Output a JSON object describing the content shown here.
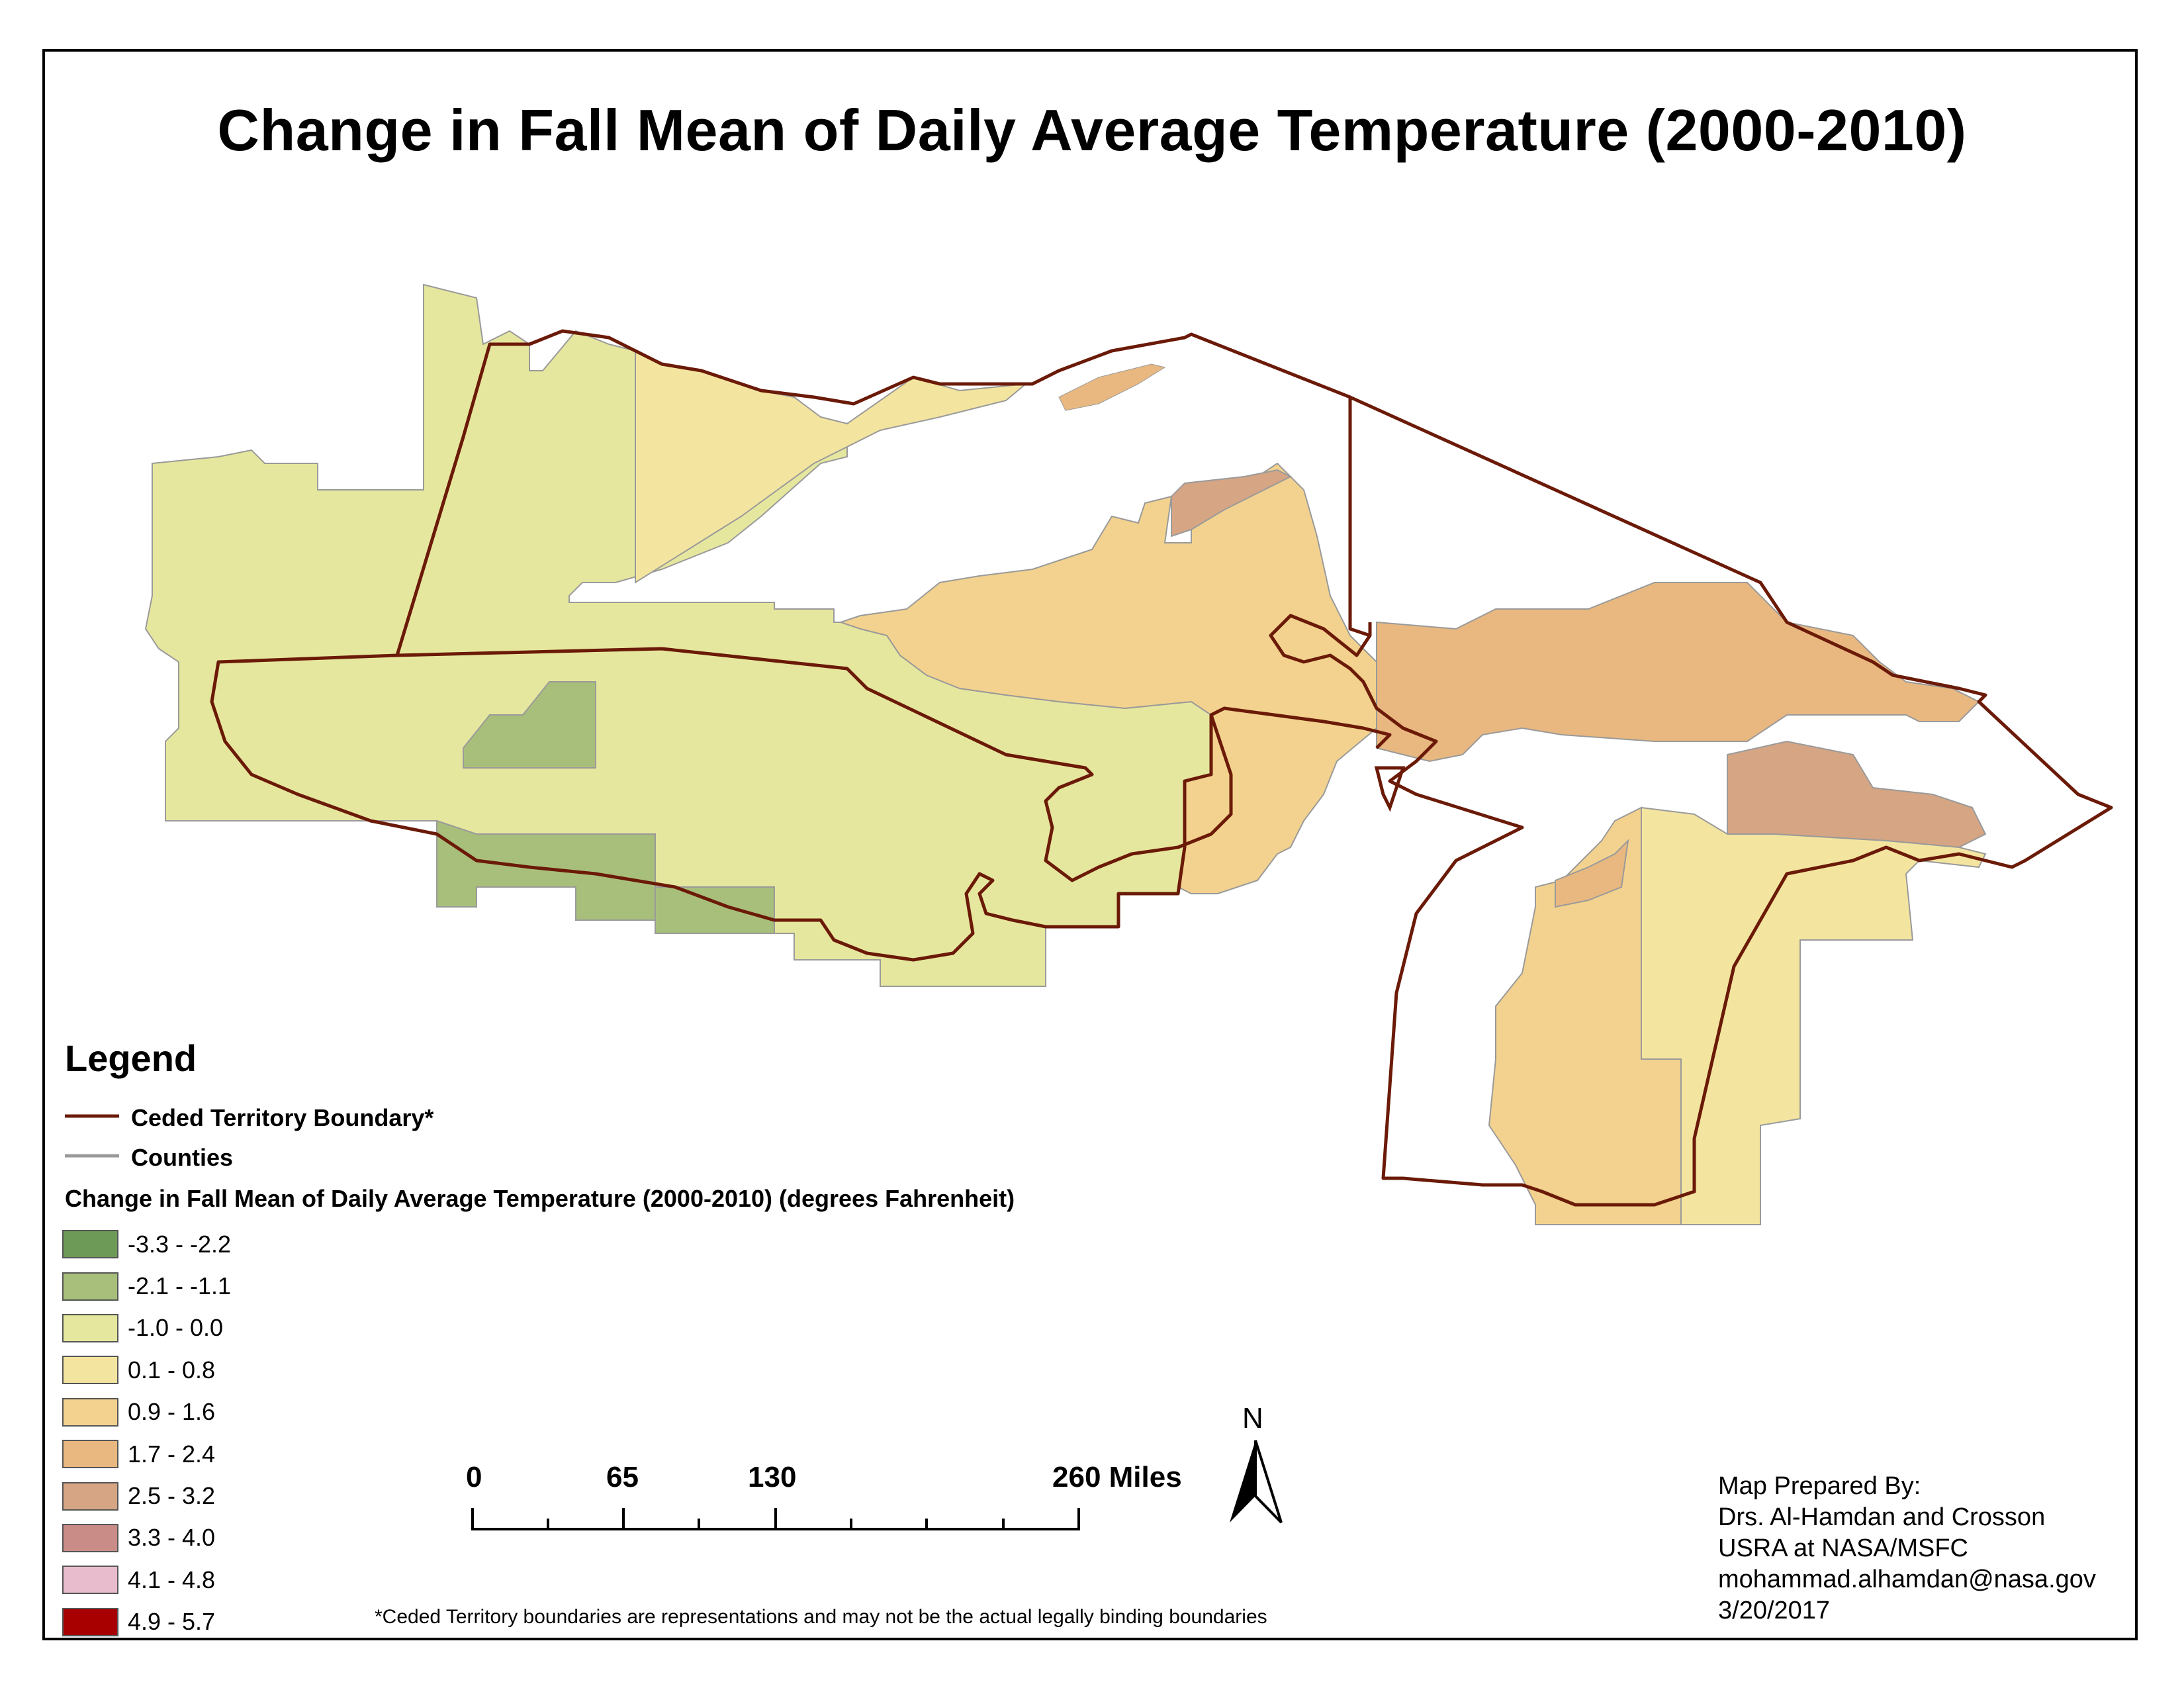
{
  "title": "Change in Fall Mean of Daily Average Temperature (2000-2010)",
  "legend": {
    "title": "Legend",
    "boundary_label": "Ceded Territory Boundary*",
    "counties_label": "Counties",
    "subtitle": "Change in Fall Mean of Daily Average Temperature (2000-2010) (degrees Fahrenheit)",
    "classes": [
      {
        "label": "-3.3 - -2.2",
        "color": "#6e9a58"
      },
      {
        "label": "-2.1 - -1.1",
        "color": "#a8bf7b"
      },
      {
        "label": "-1.0 - 0.0",
        "color": "#e6e79e"
      },
      {
        "label": "0.1 - 0.8",
        "color": "#f3e5a0"
      },
      {
        "label": "0.9 - 1.6",
        "color": "#f2d28e"
      },
      {
        "label": "1.7 - 2.4",
        "color": "#e8b880"
      },
      {
        "label": "2.5 - 3.2",
        "color": "#d5a584"
      },
      {
        "label": "3.3 - 4.0",
        "color": "#c98c86"
      },
      {
        "label": "4.1 - 4.8",
        "color": "#e8bccc"
      },
      {
        "label": "4.9 - 5.7",
        "color": "#a80000"
      }
    ]
  },
  "scale_bar": {
    "labels": [
      "0",
      "65",
      "130",
      "260 Miles"
    ]
  },
  "north_arrow": {
    "label": "N",
    "icon": "north-arrow-icon"
  },
  "footnote": "*Ceded Territory boundaries are representations and may not be the actual legally binding boundaries",
  "credits": {
    "line1": "Map Prepared By:",
    "line2": "Drs. Al-Hamdan and Crosson",
    "line3": "USRA at NASA/MSFC",
    "line4": "mohammad.alhamdan@nasa.gov",
    "line5": "3/20/2017"
  },
  "colors": {
    "boundary": "#6b1a08",
    "counties": "#9a9a9a"
  }
}
